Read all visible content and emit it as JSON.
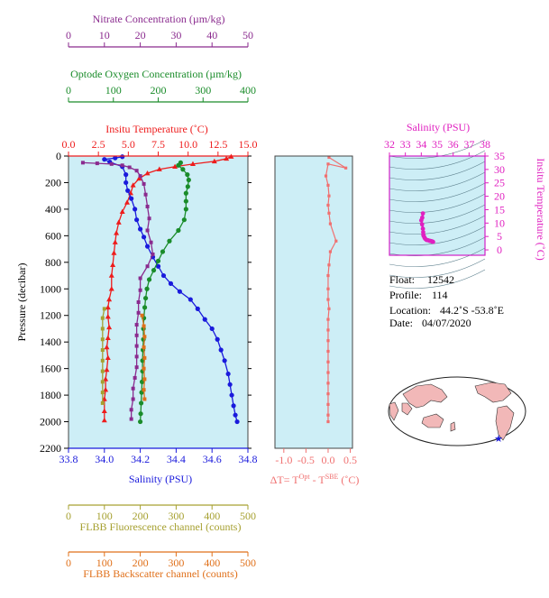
{
  "colors": {
    "background": "#cdeef6",
    "temperature": "#ee1c1c",
    "salinity": "#1a1adc",
    "oxygen": "#1a8c2a",
    "nitrate": "#8a2a8e",
    "fluorescence": "#a6a030",
    "backscatter": "#e0701a",
    "delta_t": "#f07070",
    "ts_diagram": "#e020c0",
    "ts_box_border": "#d020c8"
  },
  "axes": {
    "nitrate": {
      "label": "Nitrate Concentration (µm/kg)",
      "ticks": [
        "0",
        "10",
        "20",
        "30",
        "40",
        "50"
      ],
      "range": [
        0,
        50
      ]
    },
    "oxygen": {
      "label": "Optode Oxygen Concentration (µm/kg)",
      "ticks": [
        "0",
        "100",
        "200",
        "300",
        "400"
      ],
      "range": [
        0,
        400
      ]
    },
    "temperature": {
      "label": "Insitu Temperature (˚C)",
      "ticks": [
        "0.0",
        "2.5",
        "5.0",
        "7.5",
        "10.0",
        "12.5",
        "15.0"
      ],
      "range": [
        0,
        15
      ]
    },
    "salinity": {
      "label": "Salinity (PSU)",
      "ticks": [
        "33.8",
        "34.0",
        "34.2",
        "34.4",
        "34.6",
        "34.8"
      ],
      "range": [
        33.8,
        34.8
      ]
    },
    "pressure": {
      "label": "Pressure (decibar)",
      "ticks": [
        "0",
        "200",
        "400",
        "600",
        "800",
        "1000",
        "1200",
        "1400",
        "1600",
        "1800",
        "2000",
        "2200"
      ],
      "range": [
        0,
        2200
      ]
    },
    "fluorescence": {
      "label": "FLBB Fluorescence channel (counts)",
      "ticks": [
        "0",
        "100",
        "200",
        "300",
        "400",
        "500"
      ],
      "range": [
        0,
        500
      ]
    },
    "backscatter": {
      "label": "FLBB Backscatter channel (counts)",
      "ticks": [
        "0",
        "100",
        "200",
        "300",
        "400",
        "500"
      ],
      "range": [
        0,
        500
      ]
    },
    "delta_t": {
      "label_prefix": "ΔT= T",
      "sup1": "Opt",
      "label_mid": " - T",
      "sup2": "SBE",
      "label_suffix": " (˚C)",
      "ticks": [
        "-1.0",
        "-0.5",
        "0.0",
        "0.5"
      ],
      "range": [
        -1.2,
        0.55
      ]
    },
    "ts_salinity": {
      "label": "Salinity (PSU)",
      "ticks": [
        "32",
        "33",
        "34",
        "35",
        "36",
        "37",
        "38"
      ],
      "range": [
        32,
        38
      ]
    },
    "ts_temperature": {
      "label": "Insitu Temperature (˚C)",
      "ticks": [
        "0",
        "5",
        "10",
        "15",
        "20",
        "25",
        "30",
        "35"
      ],
      "range": [
        -2,
        35
      ]
    }
  },
  "info": {
    "float_label": "Float:",
    "float_value": "12542",
    "profile_label": "Profile:",
    "profile_value": "114",
    "location_label": "Location:",
    "location_value": "44.2˚S  -53.8˚E",
    "date_label": "Date:",
    "date_value": "04/07/2020"
  },
  "chart_data": [
    {
      "type": "line",
      "panel": "main_profile",
      "y_axis": "Pressure (decibar)",
      "ylim": [
        2200,
        0
      ],
      "series": [
        {
          "name": "Insitu Temperature (˚C)",
          "x_range": [
            0,
            15
          ],
          "points": [
            [
              13.6,
              5
            ],
            [
              13.2,
              20
            ],
            [
              12.2,
              40
            ],
            [
              10.4,
              60
            ],
            [
              8.9,
              80
            ],
            [
              7.6,
              100
            ],
            [
              6.6,
              130
            ],
            [
              5.9,
              170
            ],
            [
              5.4,
              220
            ],
            [
              5.2,
              280
            ],
            [
              4.9,
              350
            ],
            [
              4.5,
              420
            ],
            [
              4.2,
              500
            ],
            [
              4.0,
              580
            ],
            [
              3.9,
              650
            ],
            [
              3.8,
              730
            ],
            [
              3.7,
              820
            ],
            [
              3.6,
              900
            ],
            [
              3.6,
              1000
            ],
            [
              3.4,
              1080
            ],
            [
              3.3,
              1140
            ],
            [
              3.3,
              1210
            ],
            [
              3.4,
              1290
            ],
            [
              3.3,
              1370
            ],
            [
              3.2,
              1440
            ],
            [
              3.3,
              1520
            ],
            [
              3.2,
              1610
            ],
            [
              3.1,
              1680
            ],
            [
              3.1,
              1760
            ],
            [
              3.0,
              1830
            ],
            [
              3.0,
              1920
            ],
            [
              3.0,
              1990
            ]
          ]
        },
        {
          "name": "Salinity (PSU)",
          "x_range": [
            33.8,
            34.8
          ],
          "points": [
            [
              34.1,
              5
            ],
            [
              34.06,
              15
            ],
            [
              34.0,
              25
            ],
            [
              34.03,
              45
            ],
            [
              34.1,
              80
            ],
            [
              34.12,
              140
            ],
            [
              34.12,
              200
            ],
            [
              34.13,
              260
            ],
            [
              34.15,
              320
            ],
            [
              34.17,
              400
            ],
            [
              34.18,
              480
            ],
            [
              34.2,
              550
            ],
            [
              34.22,
              610
            ],
            [
              34.24,
              680
            ],
            [
              34.27,
              760
            ],
            [
              34.3,
              830
            ],
            [
              34.33,
              900
            ],
            [
              34.37,
              960
            ],
            [
              34.42,
              1020
            ],
            [
              34.48,
              1080
            ],
            [
              34.52,
              1150
            ],
            [
              34.56,
              1230
            ],
            [
              34.6,
              1300
            ],
            [
              34.63,
              1380
            ],
            [
              34.65,
              1460
            ],
            [
              34.67,
              1540
            ],
            [
              34.69,
              1640
            ],
            [
              34.7,
              1720
            ],
            [
              34.71,
              1800
            ],
            [
              34.72,
              1880
            ],
            [
              34.73,
              1950
            ],
            [
              34.74,
              2000
            ]
          ]
        },
        {
          "name": "Optode Oxygen Concentration (µm/kg)",
          "x_range": [
            0,
            400
          ],
          "points": [
            [
              250,
              50
            ],
            [
              245,
              70
            ],
            [
              255,
              100
            ],
            [
              265,
              140
            ],
            [
              268,
              180
            ],
            [
              266,
              230
            ],
            [
              262,
              280
            ],
            [
              262,
              340
            ],
            [
              262,
              400
            ],
            [
              258,
              480
            ],
            [
              245,
              560
            ],
            [
              225,
              640
            ],
            [
              210,
              720
            ],
            [
              200,
              790
            ],
            [
              190,
              860
            ],
            [
              180,
              930
            ],
            [
              175,
              1000
            ],
            [
              172,
              1070
            ],
            [
              170,
              1140
            ],
            [
              168,
              1220
            ],
            [
              167,
              1300
            ],
            [
              167,
              1380
            ],
            [
              166,
              1460
            ],
            [
              165,
              1540
            ],
            [
              165,
              1620
            ],
            [
              164,
              1700
            ],
            [
              163,
              1780
            ],
            [
              162,
              1860
            ],
            [
              161,
              1940
            ],
            [
              160,
              2000
            ]
          ]
        },
        {
          "name": "Nitrate Concentration (µm/kg)",
          "x_range": [
            0,
            50
          ],
          "points": [
            [
              4,
              50
            ],
            [
              8,
              55
            ],
            [
              12,
              60
            ],
            [
              15,
              70
            ],
            [
              17,
              85
            ],
            [
              19,
              110
            ],
            [
              20,
              150
            ],
            [
              21,
              210
            ],
            [
              21.5,
              290
            ],
            [
              22,
              380
            ],
            [
              22.5,
              470
            ],
            [
              22,
              560
            ],
            [
              23,
              650
            ],
            [
              23.5,
              740
            ],
            [
              22,
              830
            ],
            [
              20,
              920
            ],
            [
              20,
              1010
            ],
            [
              19.5,
              1100
            ],
            [
              19.5,
              1180
            ],
            [
              19,
              1270
            ],
            [
              19,
              1350
            ],
            [
              19,
              1430
            ],
            [
              19,
              1510
            ],
            [
              19,
              1590
            ],
            [
              18.5,
              1670
            ],
            [
              18,
              1750
            ],
            [
              18,
              1830
            ],
            [
              17.5,
              1910
            ],
            [
              17.5,
              1980
            ]
          ]
        },
        {
          "name": "FLBB Fluorescence channel (counts)",
          "x_range": [
            0,
            500
          ],
          "points": [
            [
              100,
              1150
            ],
            [
              95,
              1220
            ],
            [
              95,
              1300
            ],
            [
              95,
              1380
            ],
            [
              95,
              1460
            ],
            [
              95,
              1540
            ],
            [
              95,
              1620
            ],
            [
              95,
              1700
            ],
            [
              95,
              1780
            ],
            [
              95,
              1860
            ]
          ]
        },
        {
          "name": "FLBB Backscatter channel (counts)",
          "x_range": [
            0,
            500
          ],
          "points": [
            [
              205,
              1200
            ],
            [
              210,
              1280
            ],
            [
              212,
              1360
            ],
            [
              210,
              1440
            ],
            [
              212,
              1520
            ],
            [
              210,
              1600
            ],
            [
              212,
              1680
            ],
            [
              210,
              1760
            ],
            [
              212,
              1830
            ]
          ]
        }
      ]
    },
    {
      "type": "line",
      "panel": "delta_t",
      "x_label": "ΔT= TOpt - TSBE (˚C)",
      "xlim": [
        -1.2,
        0.55
      ],
      "ylim": [
        2200,
        0
      ],
      "series": [
        {
          "name": "ΔT",
          "points": [
            [
              0.02,
              10
            ],
            [
              0.4,
              90
            ],
            [
              0.0,
              60
            ],
            [
              -0.05,
              150
            ],
            [
              0.0,
              220
            ],
            [
              0.02,
              300
            ],
            [
              0.0,
              370
            ],
            [
              0.02,
              430
            ],
            [
              0.05,
              510
            ],
            [
              0.18,
              640
            ],
            [
              0.05,
              720
            ],
            [
              0.02,
              820
            ],
            [
              0.0,
              900
            ],
            [
              0.0,
              1000
            ],
            [
              0.0,
              1080
            ],
            [
              0.02,
              1150
            ],
            [
              0.0,
              1230
            ],
            [
              0.0,
              1310
            ],
            [
              0.0,
              1390
            ],
            [
              0.0,
              1470
            ],
            [
              0.0,
              1550
            ],
            [
              0.0,
              1630
            ],
            [
              0.0,
              1710
            ],
            [
              0.0,
              1790
            ],
            [
              0.0,
              1870
            ],
            [
              0.0,
              1950
            ],
            [
              0.0,
              2000
            ]
          ]
        }
      ]
    },
    {
      "type": "line",
      "panel": "ts_diagram",
      "xlabel": "Salinity (PSU)",
      "ylabel": "Insitu Temperature (˚C)",
      "xlim": [
        32,
        38
      ],
      "ylim": [
        -2,
        35
      ],
      "series": [
        {
          "name": "T-S",
          "points": [
            [
              34.1,
              13.6
            ],
            [
              34.06,
              12
            ],
            [
              34.0,
              11
            ],
            [
              34.05,
              9.5
            ],
            [
              34.1,
              7.9
            ],
            [
              34.12,
              6.6
            ],
            [
              34.13,
              5.6
            ],
            [
              34.15,
              5.2
            ],
            [
              34.2,
              4.6
            ],
            [
              34.25,
              4.1
            ],
            [
              34.33,
              3.7
            ],
            [
              34.42,
              3.6
            ],
            [
              34.52,
              3.4
            ],
            [
              34.6,
              3.3
            ],
            [
              34.65,
              3.2
            ],
            [
              34.7,
              3.1
            ],
            [
              34.74,
              3.0
            ]
          ]
        }
      ]
    }
  ]
}
